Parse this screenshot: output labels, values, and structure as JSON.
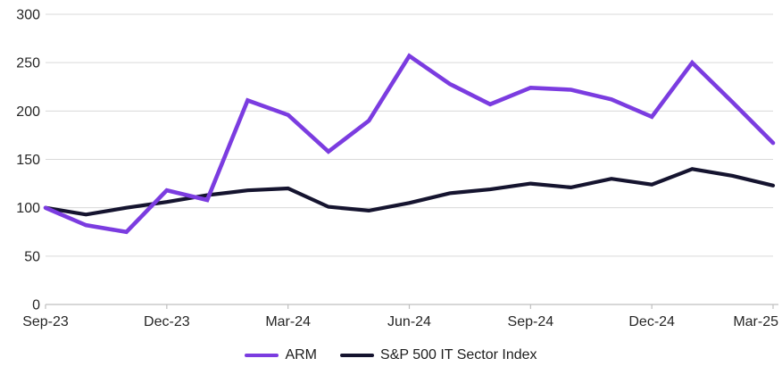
{
  "chart_data": {
    "type": "line",
    "title": "",
    "xlabel": "",
    "ylabel": "",
    "x_labels": [
      "Sep-23",
      "Oct-23",
      "Nov-23",
      "Dec-23",
      "Jan-24",
      "Feb-24",
      "Mar-24",
      "Apr-24",
      "May-24",
      "Jun-24",
      "Jul-24",
      "Aug-24",
      "Sep-24",
      "Oct-24",
      "Nov-24",
      "Dec-24",
      "Jan-25",
      "Feb-25",
      "Mar-25"
    ],
    "x_tick_every": 3,
    "visible_x_tick_labels": [
      "Sep-23",
      "Dec-23",
      "Mar-24",
      "Jun-24",
      "Sep-24",
      "Dec-24",
      "Mar-25"
    ],
    "y_ticks": [
      0,
      50,
      100,
      150,
      200,
      250,
      300
    ],
    "ylim": [
      0,
      300
    ],
    "grid": "horizontal",
    "legend_position": "bottom",
    "series": [
      {
        "name": "ARM",
        "color": "#7b3ce0",
        "line_width": 4.6,
        "values": [
          100,
          82,
          75,
          118,
          108,
          211,
          196,
          158,
          190,
          257,
          228,
          207,
          224,
          222,
          212,
          194,
          250,
          209,
          167
        ]
      },
      {
        "name": "S&P 500 IT Sector Index",
        "color": "#15142f",
        "line_width": 4.2,
        "values": [
          100,
          93,
          100,
          106,
          113,
          118,
          120,
          101,
          97,
          105,
          115,
          119,
          125,
          121,
          130,
          124,
          140,
          133,
          123
        ]
      }
    ]
  },
  "colors": {
    "background": "#ffffff",
    "gridline": "#d9d9d9",
    "axis_line": "#bfbfbf",
    "tick_label": "#262626"
  }
}
